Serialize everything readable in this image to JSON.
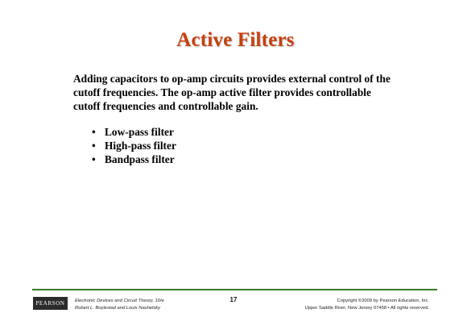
{
  "slide": {
    "title": "Active Filters",
    "intro_lines": [
      "Adding capacitors to op-amp circuits provides external control of the",
      "cutoff frequencies. The op-amp active filter provides controllable",
      "cutoff frequencies and controllable gain."
    ],
    "bullet_symbol": "•",
    "bullets": [
      "Low-pass filter",
      "High-pass filter",
      "Bandpass filter"
    ]
  },
  "footer": {
    "logo_text": "PEARSON",
    "book_title": "Electronic Devices and Circuit Theory, 10/e",
    "authors": "Robert L. Boylestad and Louis Nashelsky",
    "page_number": "17",
    "copyright": "Copyright ©2009 by Pearson Education, Inc.",
    "address": "Upper Saddle River, New Jersey 07458 • All rights reserved."
  },
  "colors": {
    "title": "#C8400E",
    "footer_rule": "#3a7a2a",
    "logo_bg": "#2b2b2b"
  }
}
